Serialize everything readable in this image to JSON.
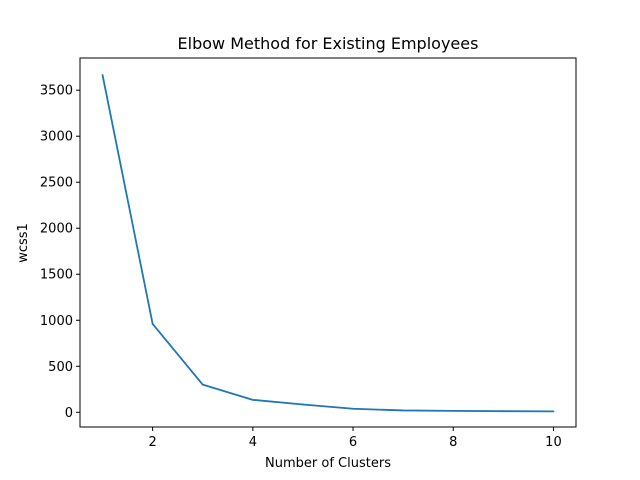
{
  "chart_data": {
    "type": "line",
    "title": "Elbow Method for Existing Employees",
    "xlabel": "Number of Clusters",
    "ylabel": "wcss1",
    "x": [
      1,
      2,
      3,
      4,
      5,
      6,
      7,
      8,
      9,
      10
    ],
    "series": [
      {
        "values": [
          3665,
          960,
          300,
          135,
          85,
          38,
          20,
          15,
          12,
          10
        ]
      }
    ],
    "xlim": [
      0.55,
      10.45
    ],
    "ylim": [
      -160,
      3850
    ],
    "xticks": [
      2,
      4,
      6,
      8,
      10
    ],
    "xtick_labels": [
      "2",
      "4",
      "6",
      "8",
      "10"
    ],
    "yticks": [
      0,
      500,
      1000,
      1500,
      2000,
      2500,
      3000,
      3500
    ],
    "ytick_labels": [
      "0",
      "500",
      "1000",
      "1500",
      "2000",
      "2500",
      "3000",
      "3500"
    ],
    "grid": false,
    "line_color": "#1f77b4"
  }
}
